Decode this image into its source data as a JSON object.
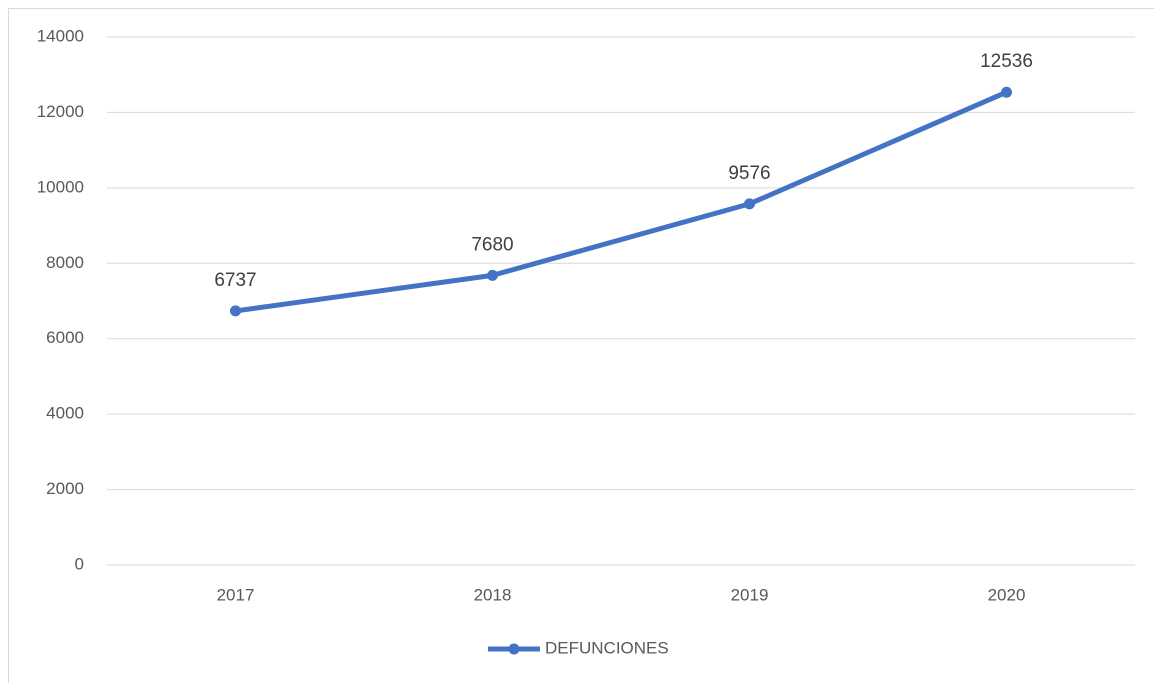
{
  "chart_data": {
    "type": "line",
    "categories": [
      "2017",
      "2018",
      "2019",
      "2020"
    ],
    "series": [
      {
        "name": "DEFUNCIONES",
        "color": "#4472c4",
        "values": [
          6737,
          7680,
          9576,
          12536
        ]
      }
    ],
    "ylim": [
      0,
      14000
    ],
    "yticks": [
      0,
      2000,
      4000,
      6000,
      8000,
      10000,
      12000,
      14000
    ],
    "grid": true,
    "legend": "bottom",
    "data_labels": true
  }
}
